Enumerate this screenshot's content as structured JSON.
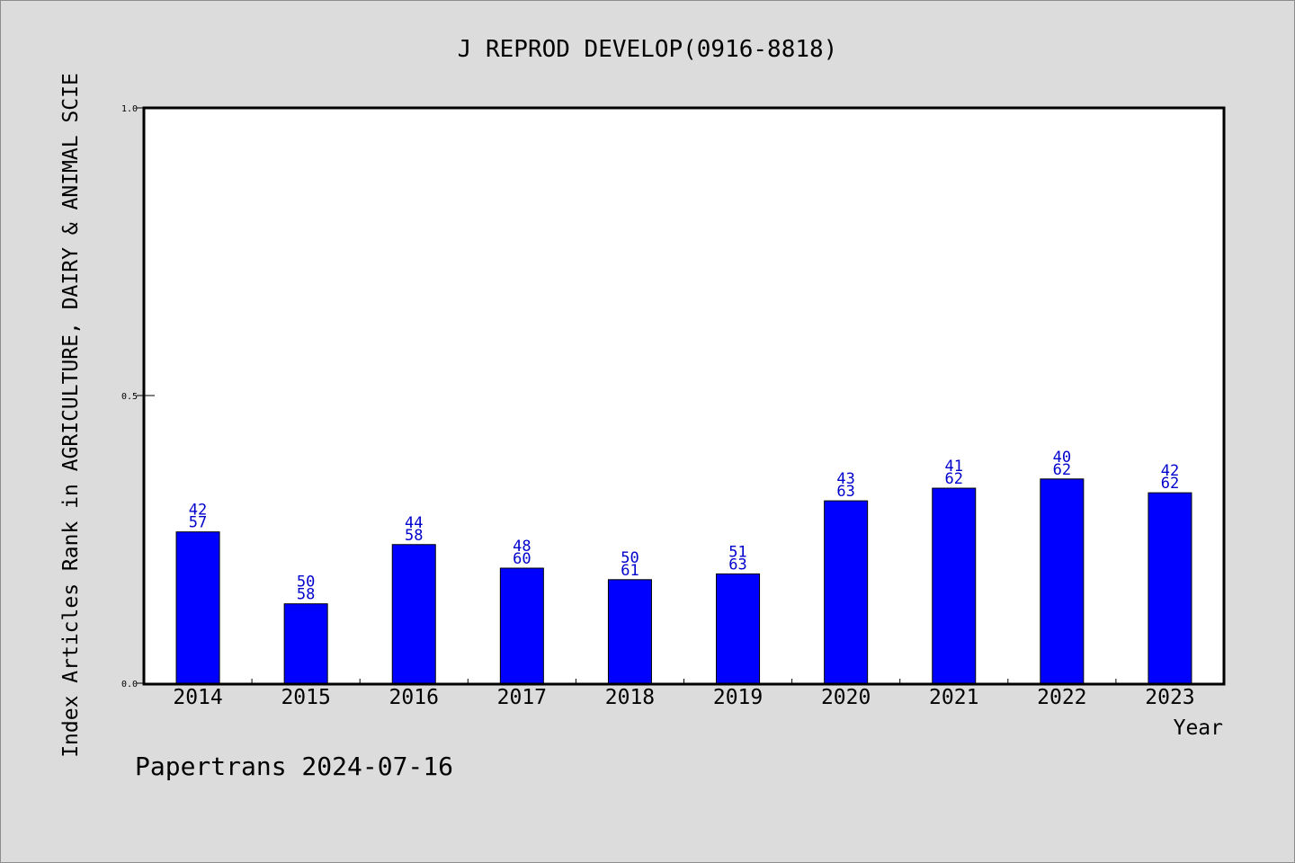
{
  "chart_data": {
    "type": "bar",
    "title": "J REPROD DEVELOP(0916-8818)",
    "xlabel": "Year",
    "ylabel": "Index Articles Rank in AGRICULTURE, DAIRY & ANIMAL SCIE",
    "ylim": [
      0.0,
      1.0
    ],
    "yticks": [
      "0.0",
      "0.5",
      "1.0"
    ],
    "categories": [
      "2014",
      "2015",
      "2016",
      "2017",
      "2018",
      "2019",
      "2020",
      "2021",
      "2022",
      "2023"
    ],
    "values": [
      0.263,
      0.138,
      0.241,
      0.2,
      0.18,
      0.19,
      0.317,
      0.339,
      0.355,
      0.331
    ],
    "labels_top": [
      "42",
      "50",
      "44",
      "48",
      "50",
      "51",
      "43",
      "41",
      "40",
      "42"
    ],
    "labels_bottom": [
      "57",
      "58",
      "58",
      "60",
      "61",
      "63",
      "63",
      "62",
      "62",
      "62"
    ],
    "bar_color": "#0000ff",
    "label_color": "#0000cc",
    "grid": false
  },
  "footer": {
    "source": "Papertrans 2024-07-16"
  }
}
